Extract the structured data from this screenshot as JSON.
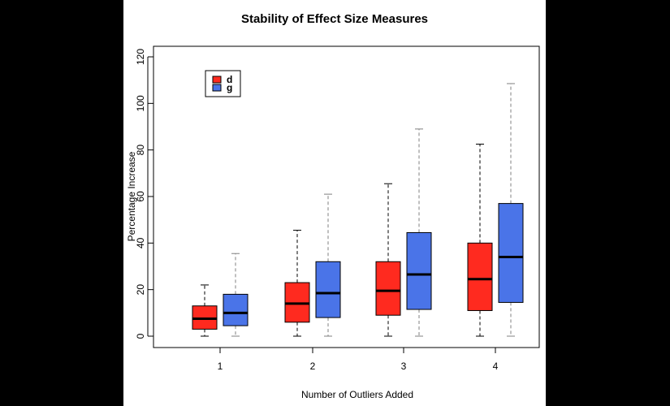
{
  "chart_data": {
    "type": "box",
    "title": "Stability of Effect Size Measures",
    "xlabel": "Number of Outliers Added",
    "ylabel": "Percentage Increase",
    "categories": [
      "1",
      "2",
      "3",
      "4"
    ],
    "ylim": [
      0,
      120
    ],
    "yticks": [
      0,
      20,
      40,
      60,
      80,
      100,
      120
    ],
    "grid": false,
    "legend_position": "top-left",
    "series": [
      {
        "name": "d",
        "color": "#ff2a1f",
        "whisker_color": "#000000",
        "boxes": [
          {
            "min": 0,
            "q1": 3,
            "median": 7.5,
            "q3": 13,
            "max": 22
          },
          {
            "min": 0,
            "q1": 6,
            "median": 14,
            "q3": 23,
            "max": 45.5
          },
          {
            "min": 0,
            "q1": 9,
            "median": 19.5,
            "q3": 32,
            "max": 65.5
          },
          {
            "min": 0,
            "q1": 11,
            "median": 24.5,
            "q3": 40,
            "max": 82.5
          }
        ]
      },
      {
        "name": "g",
        "color": "#4a74e8",
        "whisker_color": "#808080",
        "boxes": [
          {
            "min": 0,
            "q1": 4.5,
            "median": 10,
            "q3": 18,
            "max": 35.5
          },
          {
            "min": 0,
            "q1": 8,
            "median": 18.5,
            "q3": 32,
            "max": 61
          },
          {
            "min": 0,
            "q1": 11.5,
            "median": 26.5,
            "q3": 44.5,
            "max": 89
          },
          {
            "min": 0,
            "q1": 14.5,
            "median": 34,
            "q3": 57,
            "max": 108.5
          }
        ]
      }
    ]
  }
}
